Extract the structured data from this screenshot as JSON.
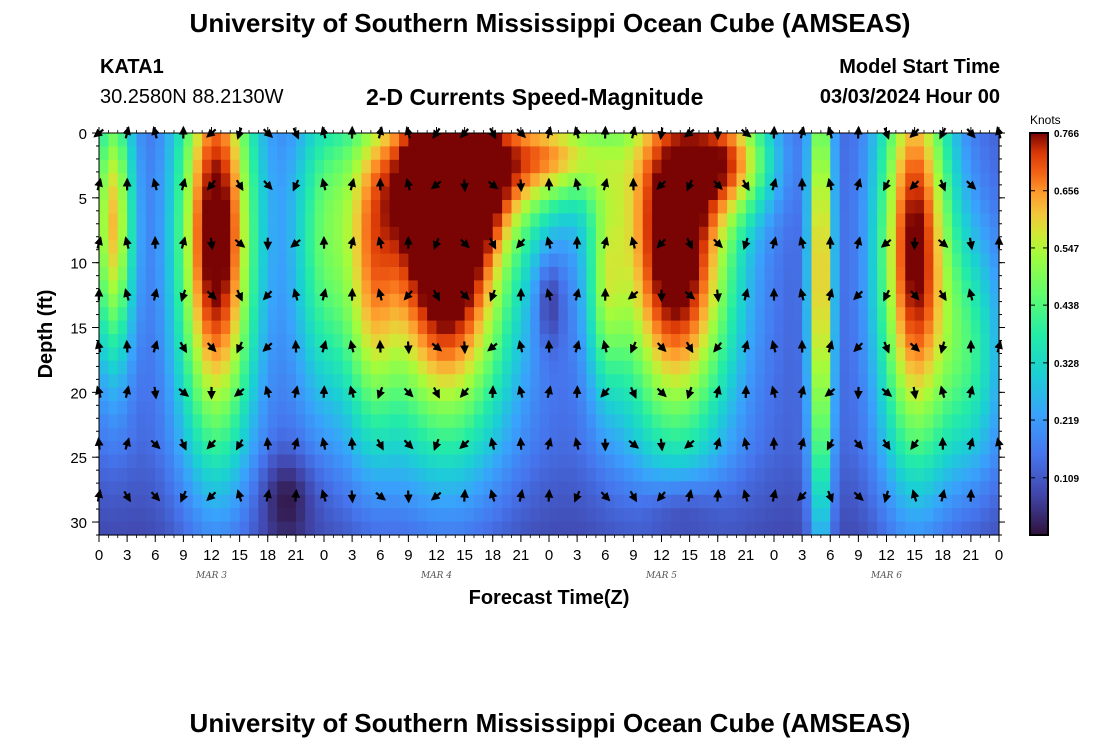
{
  "header": {
    "title": "University of Southern Mississippi Ocean Cube (AMSEAS)",
    "station": "KATA1",
    "coordinates": "30.2580N  88.2130W",
    "subtitle": "2-D Currents Speed-Magnitude",
    "model_start_label": "Model Start Time",
    "model_start_value": "03/03/2024 Hour 00"
  },
  "footer": {
    "title": "University of Southern Mississippi Ocean Cube (AMSEAS)"
  },
  "chart_data": {
    "type": "heatmap",
    "title": "2-D Currents Speed-Magnitude",
    "xlabel": "Forecast Time(Z)",
    "ylabel": "Depth (ft)",
    "x_tick_labels": [
      "0",
      "3",
      "6",
      "9",
      "12",
      "15",
      "18",
      "21",
      "0",
      "3",
      "6",
      "9",
      "12",
      "15",
      "18",
      "21",
      "0",
      "3",
      "6",
      "9",
      "12",
      "15",
      "18",
      "21",
      "0",
      "3",
      "6",
      "9",
      "12",
      "15",
      "18",
      "21",
      "0"
    ],
    "x_range_hours": [
      0,
      96
    ],
    "date_labels": [
      {
        "label": "MAR 3",
        "hour": 12
      },
      {
        "label": "MAR 4",
        "hour": 36
      },
      {
        "label": "MAR 5",
        "hour": 60
      },
      {
        "label": "MAR 6",
        "hour": 84
      }
    ],
    "y_ticks": [
      0,
      5,
      10,
      15,
      20,
      25,
      30
    ],
    "y_range_ft": [
      0,
      31
    ],
    "y_inverted": true,
    "colorbar": {
      "title": "Knots",
      "ticks": [
        "0.766",
        "0.656",
        "0.547",
        "0.438",
        "0.328",
        "0.219",
        "0.109"
      ],
      "range": [
        0.0,
        0.766
      ]
    },
    "speed_hotspots_knots": [
      {
        "hour": 12.5,
        "depth_ft": 9,
        "speed": 0.7
      },
      {
        "hour": 37,
        "depth_ft": 8,
        "speed": 0.75
      },
      {
        "hour": 61,
        "depth_ft": 8,
        "speed": 0.74
      },
      {
        "hour": 87,
        "depth_ft": 10,
        "speed": 0.66
      }
    ],
    "arrow_depths_ft": [
      0,
      4,
      8.5,
      12.5,
      16.5,
      20,
      24,
      28
    ]
  }
}
